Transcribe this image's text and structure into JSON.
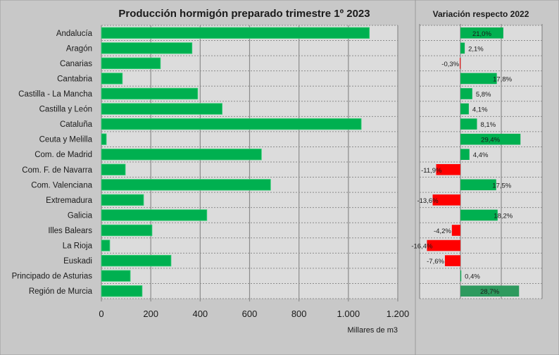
{
  "chart_data": [
    {
      "type": "bar",
      "orientation": "horizontal",
      "title": "Producción hormigón preparado trimestre 1º 2023",
      "xlabel": "Millares de m3",
      "ylabel": "",
      "xlim": [
        0,
        1200
      ],
      "xticks": [
        "0",
        "200",
        "400",
        "600",
        "800",
        "1.000",
        "1.200"
      ],
      "xtick_values": [
        0,
        200,
        400,
        600,
        800,
        1000,
        1200
      ],
      "grid": true,
      "bar_color": "#00b050",
      "categories": [
        "Andalucía",
        "Aragón",
        "Canarias",
        "Cantabria",
        "Castilla - La Mancha",
        "Castilla y León",
        "Cataluña",
        "Ceuta y Melilla",
        "Com. de Madrid",
        "Com. F. de Navarra",
        "Com. Valenciana",
        "Extremadura",
        "Galicia",
        "Illes Balears",
        "La Rioja",
        "Euskadi",
        "Principado de Asturias",
        "Región de Murcia"
      ],
      "values": [
        1085,
        367,
        239,
        85,
        390,
        489,
        1052,
        20,
        648,
        97,
        685,
        171,
        427,
        205,
        34,
        282,
        117,
        165
      ]
    },
    {
      "type": "bar",
      "orientation": "horizontal",
      "title": "Variación respecto 2022",
      "xlim": [
        -20,
        40
      ],
      "grid": true,
      "positive_color": "#00b050",
      "negative_color": "#ff0000",
      "highlight_color": "#2e9a5e",
      "categories": [
        "Andalucía",
        "Aragón",
        "Canarias",
        "Cantabria",
        "Castilla - La Mancha",
        "Castilla y León",
        "Cataluña",
        "Ceuta y Melilla",
        "Com. de Madrid",
        "Com. F. de Navarra",
        "Com. Valenciana",
        "Extremadura",
        "Galicia",
        "Illes Balears",
        "La Rioja",
        "Euskadi",
        "Principado de Asturias",
        "Región de Murcia"
      ],
      "values": [
        21.0,
        2.1,
        -0.3,
        17.8,
        5.8,
        4.1,
        8.1,
        29.4,
        4.4,
        -11.9,
        17.5,
        -13.6,
        18.2,
        -4.2,
        -16.4,
        -7.6,
        0.4,
        28.7
      ],
      "labels": [
        "21,0%",
        "2,1%",
        "-0,3%",
        "17,8%",
        "5,8%",
        "4,1%",
        "8,1%",
        "29,4%",
        "4,4%",
        "-11,9%",
        "17,5%",
        "-13,6%",
        "18,2%",
        "-4,2%",
        "-16,4%",
        "-7,6%",
        "0,4%",
        "28,7%"
      ]
    }
  ]
}
